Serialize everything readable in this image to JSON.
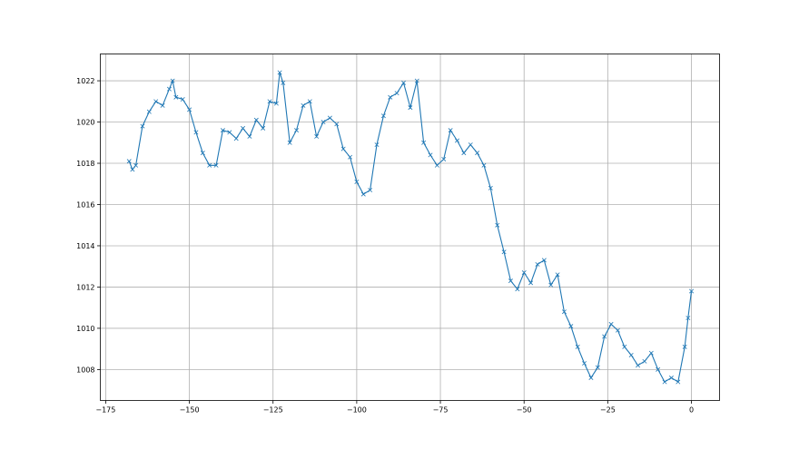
{
  "chart_data": {
    "type": "line",
    "title": "",
    "xlabel": "",
    "ylabel": "",
    "xlim": [
      -176.6,
      8.4
    ],
    "ylim": [
      1006.5,
      1023.3
    ],
    "grid": true,
    "marker": "x",
    "color": "#1f77b4",
    "x_ticks": [
      "-175",
      "-150",
      "-125",
      "-100",
      "-75",
      "-50",
      "-25",
      "0"
    ],
    "x_tick_values": [
      -175,
      -150,
      -125,
      -100,
      -75,
      -50,
      -25,
      0
    ],
    "y_ticks": [
      "1008",
      "1010",
      "1012",
      "1014",
      "1016",
      "1018",
      "1020",
      "1022"
    ],
    "y_tick_values": [
      1008,
      1010,
      1012,
      1014,
      1016,
      1018,
      1020,
      1022
    ],
    "series": [
      {
        "x": [
          -168,
          -167,
          -166,
          -164,
          -162,
          -160,
          -158,
          -156,
          -155,
          -154,
          -152,
          -150,
          -148,
          -146,
          -144,
          -142,
          -140,
          -138,
          -136,
          -134,
          -132,
          -130,
          -128,
          -126,
          -124,
          -123,
          -122,
          -120,
          -118,
          -116,
          -114,
          -112,
          -110,
          -108,
          -106,
          -104,
          -102,
          -100,
          -98,
          -96,
          -94,
          -92,
          -90,
          -88,
          -86,
          -84,
          -82,
          -80,
          -78,
          -76,
          -74,
          -72,
          -70,
          -68,
          -66,
          -64,
          -62,
          -60,
          -58,
          -56,
          -54,
          -52,
          -50,
          -48,
          -46,
          -44,
          -42,
          -40,
          -38,
          -36,
          -34,
          -32,
          -30,
          -28,
          -26,
          -24,
          -22,
          -20,
          -18,
          -16,
          -14,
          -12,
          -10,
          -8,
          -6,
          -4,
          -2,
          -1,
          0
        ],
        "y": [
          1018.1,
          1017.7,
          1017.9,
          1019.8,
          1020.5,
          1021.0,
          1020.8,
          1021.6,
          1022.0,
          1021.2,
          1021.1,
          1020.6,
          1019.5,
          1018.5,
          1017.9,
          1017.9,
          1019.6,
          1019.5,
          1019.2,
          1019.7,
          1019.3,
          1020.1,
          1019.7,
          1021.0,
          1020.9,
          1022.4,
          1021.9,
          1019.0,
          1019.6,
          1020.8,
          1021.0,
          1019.3,
          1020.0,
          1020.2,
          1019.9,
          1018.7,
          1018.3,
          1017.1,
          1016.5,
          1016.7,
          1018.9,
          1020.3,
          1021.2,
          1021.4,
          1021.9,
          1020.7,
          1022.0,
          1019.0,
          1018.4,
          1017.9,
          1018.2,
          1019.6,
          1019.1,
          1018.5,
          1018.9,
          1018.5,
          1017.9,
          1016.8,
          1015.0,
          1013.7,
          1012.3,
          1011.9,
          1012.7,
          1012.2,
          1013.1,
          1013.3,
          1012.1,
          1012.6,
          1010.8,
          1010.1,
          1009.1,
          1008.3,
          1007.6,
          1008.1,
          1009.6,
          1010.2,
          1009.9,
          1009.1,
          1008.7,
          1008.2,
          1008.4,
          1008.8,
          1008.0,
          1007.4,
          1007.6,
          1007.4,
          1009.1,
          1010.5,
          1011.8
        ]
      }
    ]
  }
}
